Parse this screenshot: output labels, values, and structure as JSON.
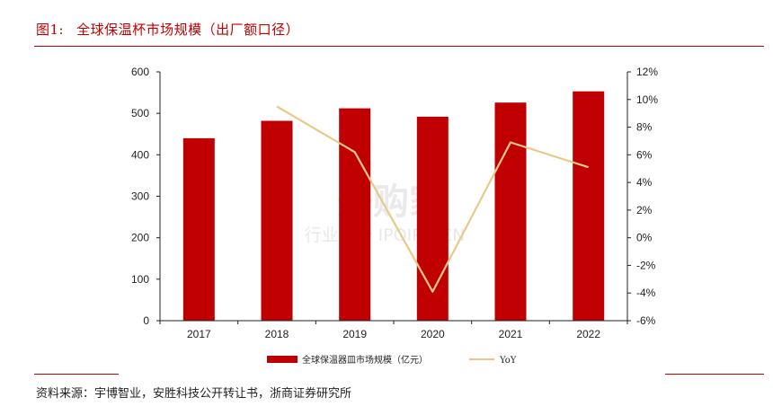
{
  "header": {
    "fig_num": "图1:",
    "fig_title": "全球保温杯市场规模（出厂额口径）"
  },
  "source": "资料来源：宇博智业，安胜科技公开转让书，浙商证券研究所",
  "watermark": {
    "line1": "开购家",
    "line2": "行业报告 IPOIPO.CN"
  },
  "colors": {
    "bar": "#c00000",
    "line": "#e8c98a",
    "rule": "#c00000"
  },
  "chart_data": {
    "type": "bar",
    "categories": [
      "2017",
      "2018",
      "2019",
      "2020",
      "2021",
      "2022"
    ],
    "series": [
      {
        "name": "全球保温器皿市场规模（亿元）",
        "type": "bar",
        "axis": "left",
        "values": [
          440,
          482,
          512,
          492,
          526,
          553
        ]
      },
      {
        "name": "YoY",
        "type": "line",
        "axis": "right",
        "values": [
          null,
          9.5,
          6.2,
          -3.9,
          6.9,
          5.1
        ]
      }
    ],
    "y_left": {
      "min": 0,
      "max": 600,
      "step": 100,
      "ticks": [
        "0",
        "100",
        "200",
        "300",
        "400",
        "500",
        "600"
      ]
    },
    "y_right": {
      "min": -6,
      "max": 12,
      "step": 2,
      "ticks": [
        "-6%",
        "-4%",
        "-2%",
        "0%",
        "2%",
        "4%",
        "6%",
        "8%",
        "10%",
        "12%"
      ]
    },
    "legend_position": "bottom",
    "grid": false
  }
}
